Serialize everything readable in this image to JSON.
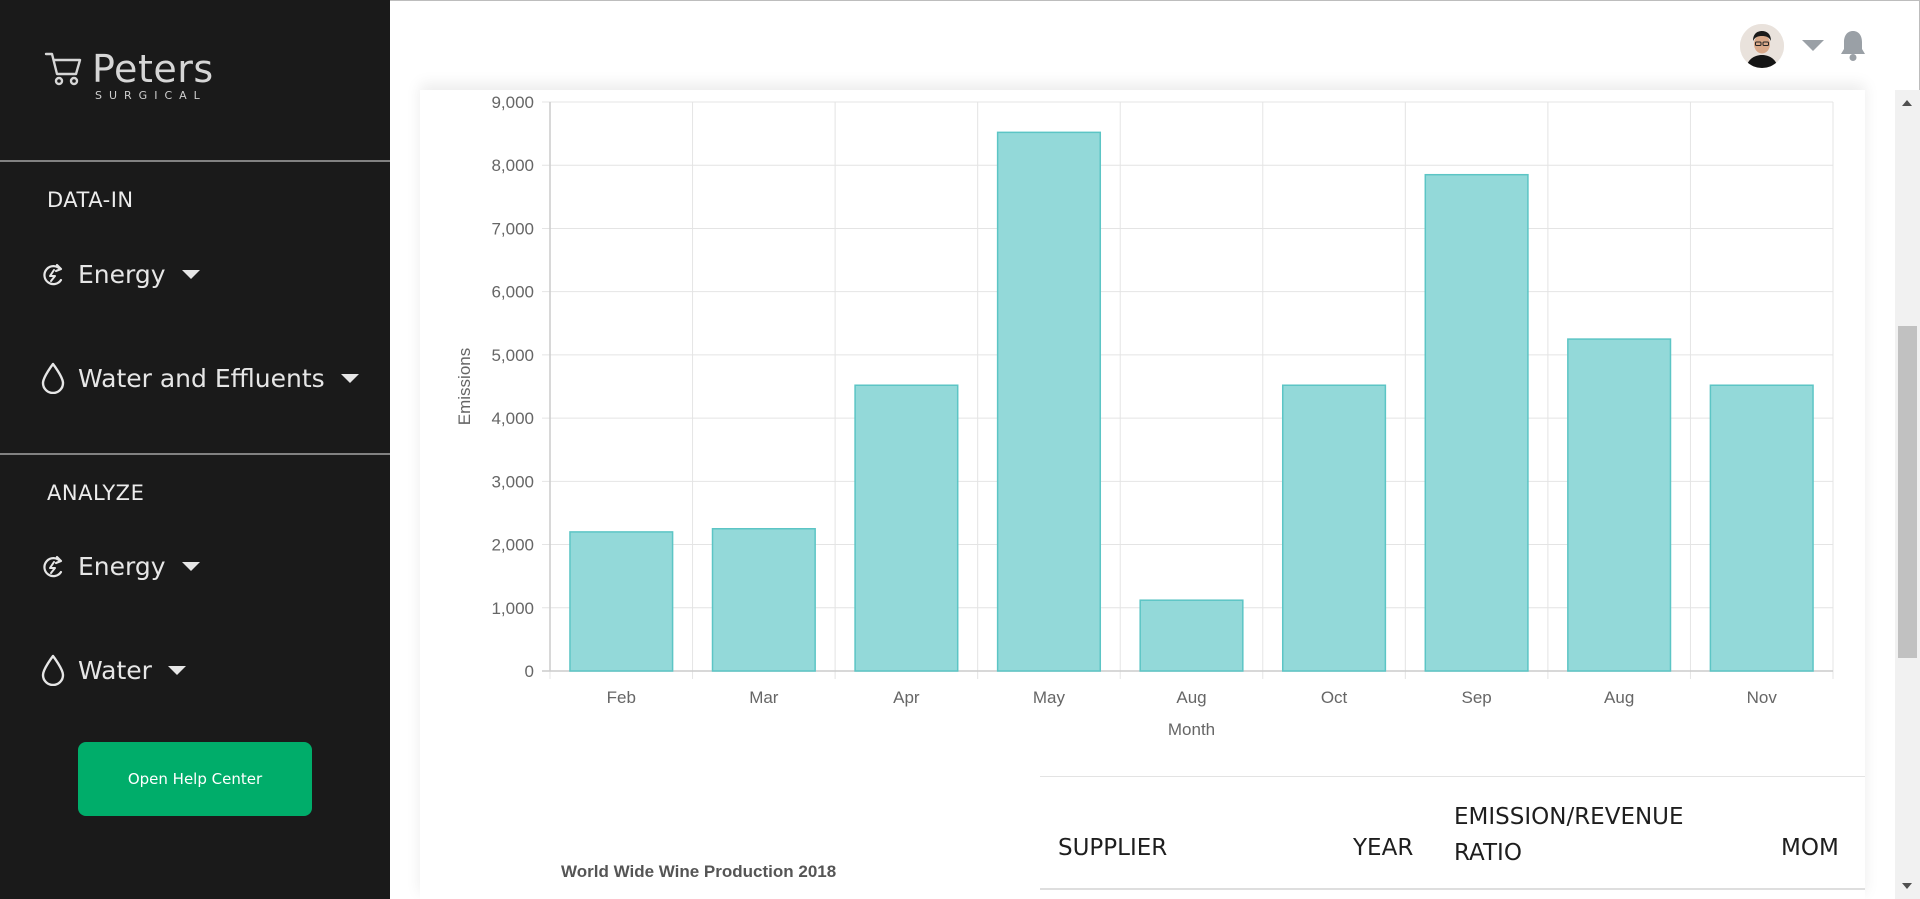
{
  "brand": {
    "name": "Peters",
    "subtitle": "SURGICAL"
  },
  "sidebar": {
    "sections": [
      {
        "title": "DATA-IN",
        "items": [
          {
            "label": "Energy",
            "icon": "energy-icon"
          },
          {
            "label": "Water and Effluents",
            "icon": "water-drop-icon"
          }
        ]
      },
      {
        "title": "ANALYZE",
        "items": [
          {
            "label": "Energy",
            "icon": "energy-icon"
          },
          {
            "label": "Water",
            "icon": "water-drop-icon"
          }
        ]
      }
    ],
    "help_button": "Open Help Center"
  },
  "header": {
    "avatar": "user-avatar",
    "dropdown": "chevron-down-icon",
    "notifications": "bell-icon"
  },
  "chart_data": {
    "type": "bar",
    "categories": [
      "Feb",
      "Mar",
      "Apr",
      "May",
      "Aug",
      "Oct",
      "Sep",
      "Aug",
      "Nov"
    ],
    "values": [
      2200,
      2250,
      4520,
      8520,
      1120,
      4520,
      7850,
      5250,
      4520
    ],
    "xlabel": "Month",
    "ylabel": "Emissions",
    "ylim": [
      0,
      9000
    ],
    "yticks": [
      "0",
      "1,000",
      "2,000",
      "3,000",
      "4,000",
      "5,000",
      "6,000",
      "7,000",
      "8,000",
      "9,000"
    ],
    "grid": true,
    "colors": {
      "fill": "#93d9d9",
      "stroke": "#5cc5c5"
    }
  },
  "caption": "World Wide Wine Production 2018",
  "table": {
    "headers": [
      {
        "lines": [
          "SUPPLIER"
        ]
      },
      {
        "lines": [
          "YEAR"
        ]
      },
      {
        "lines": [
          "EMISSION/REVENUE",
          "RATIO"
        ]
      },
      {
        "lines": [
          "MOM"
        ]
      }
    ]
  },
  "colors": {
    "sidebar_bg": "#1a1a1a",
    "accent": "#00ad6a"
  }
}
